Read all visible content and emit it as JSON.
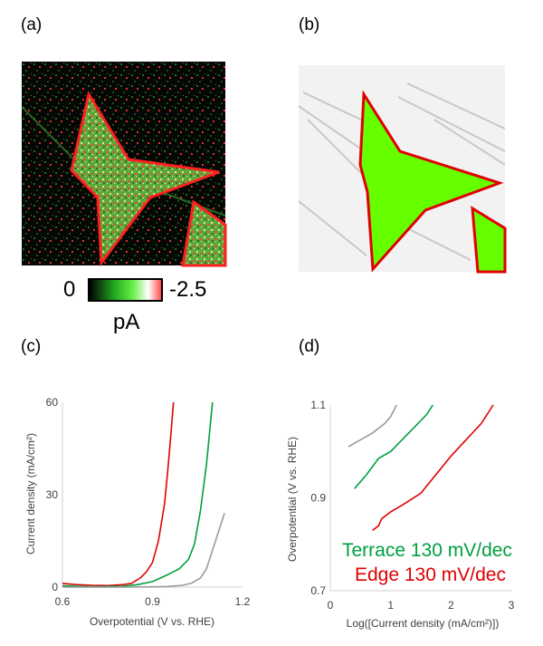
{
  "panels": {
    "a": "(a)",
    "b": "(b)",
    "c": "(c)",
    "d": "(d)"
  },
  "colorbar": {
    "min_label": "0",
    "max_label": "-2.5",
    "unit": "pA",
    "colors": [
      "#000000",
      "#22aa22",
      "#66ee44",
      "#ffffff",
      "#ff5050"
    ]
  },
  "colors": {
    "red": "#e00000",
    "green": "#00a040",
    "gray": "#9a9a9a",
    "lime": "#66ff00"
  },
  "chart_data": [
    {
      "type": "line",
      "xlabel": "Overpotential (V vs. RHE)",
      "ylabel": "Current density (mA/cm²)",
      "xlim": [
        0.6,
        1.2
      ],
      "ylim": [
        0,
        60
      ],
      "xticks": [
        "0.6",
        "0.9",
        "1.2"
      ],
      "yticks": [
        "0",
        "30",
        "60"
      ],
      "grid": false,
      "series": [
        {
          "color": "#e00000",
          "points": [
            [
              0.6,
              1.2
            ],
            [
              0.65,
              0.8
            ],
            [
              0.7,
              0.6
            ],
            [
              0.75,
              0.5
            ],
            [
              0.8,
              0.8
            ],
            [
              0.83,
              1.2
            ],
            [
              0.86,
              3
            ],
            [
              0.88,
              5
            ],
            [
              0.9,
              8
            ],
            [
              0.92,
              15
            ],
            [
              0.94,
              27
            ],
            [
              0.95,
              37
            ],
            [
              0.96,
              48
            ],
            [
              0.97,
              60
            ]
          ]
        },
        {
          "color": "#00a040",
          "points": [
            [
              0.6,
              0.4
            ],
            [
              0.7,
              0.1
            ],
            [
              0.8,
              0.3
            ],
            [
              0.85,
              0.8
            ],
            [
              0.9,
              1.8
            ],
            [
              0.95,
              4
            ],
            [
              0.99,
              6
            ],
            [
              1.02,
              9
            ],
            [
              1.04,
              14
            ],
            [
              1.06,
              25
            ],
            [
              1.08,
              40
            ],
            [
              1.09,
              50
            ],
            [
              1.1,
              60
            ]
          ]
        },
        {
          "color": "#9a9a9a",
          "points": [
            [
              0.6,
              0
            ],
            [
              0.8,
              0
            ],
            [
              0.9,
              0.1
            ],
            [
              0.95,
              0.2
            ],
            [
              1.0,
              0.6
            ],
            [
              1.03,
              1.3
            ],
            [
              1.06,
              3
            ],
            [
              1.08,
              6
            ],
            [
              1.1,
              12
            ],
            [
              1.12,
              18
            ],
            [
              1.14,
              24
            ]
          ]
        }
      ]
    },
    {
      "type": "line",
      "xlabel": "Log([Current density (mA/cm²)])",
      "ylabel": "Overpotential (V vs. RHE)",
      "xlim": [
        0,
        3
      ],
      "ylim": [
        0.7,
        1.1
      ],
      "xticks": [
        "0",
        "1",
        "2",
        "3"
      ],
      "yticks": [
        "0.7",
        "0.9",
        "1.1"
      ],
      "grid": false,
      "annotations": [
        {
          "text": "Terrace 130 mV/dec",
          "color": "#00a040"
        },
        {
          "text": "Edge 130 mV/dec",
          "color": "#e00000"
        }
      ],
      "series": [
        {
          "color": "#e00000",
          "points": [
            [
              0.7,
              0.83
            ],
            [
              0.8,
              0.84
            ],
            [
              0.85,
              0.855
            ],
            [
              1.0,
              0.87
            ],
            [
              1.2,
              0.885
            ],
            [
              1.5,
              0.91
            ],
            [
              2.0,
              0.99
            ],
            [
              2.5,
              1.06
            ],
            [
              2.7,
              1.1
            ]
          ]
        },
        {
          "color": "#00a040",
          "points": [
            [
              0.4,
              0.92
            ],
            [
              0.6,
              0.95
            ],
            [
              0.8,
              0.985
            ],
            [
              1.0,
              1.0
            ],
            [
              1.3,
              1.04
            ],
            [
              1.6,
              1.08
            ],
            [
              1.7,
              1.1
            ]
          ]
        },
        {
          "color": "#9a9a9a",
          "points": [
            [
              0.3,
              1.01
            ],
            [
              0.5,
              1.025
            ],
            [
              0.7,
              1.04
            ],
            [
              0.9,
              1.06
            ],
            [
              1.0,
              1.075
            ],
            [
              1.1,
              1.1
            ]
          ]
        }
      ]
    }
  ]
}
